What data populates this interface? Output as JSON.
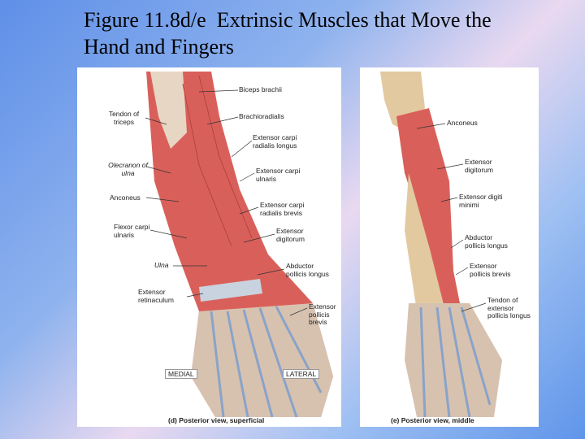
{
  "title": "Figure 11.8d/e  Extrinsic Muscles that Move the Hand and Fingers",
  "panels": [
    {
      "labels": [
        "Biceps brachii",
        "Brachioradialis",
        "Tendon of triceps",
        "Olecranon of ulna",
        "Extensor carpi radialis longus",
        "Extensor carpi ulnaris",
        "Anconeus",
        "Extensor carpi radialis brevis",
        "Flexor carpi ulnaris",
        "Extensor digitorum",
        "Ulna",
        "Abductor pollicis longus",
        "Extensor retinaculum",
        "Extensor pollicis brevis"
      ],
      "orientation": [
        "MEDIAL",
        "LATERAL"
      ],
      "caption": "(d) Posterior view, superficial"
    },
    {
      "labels": [
        "Anconeus",
        "Extensor digitorum",
        "Extensor digiti minimi",
        "Abductor pollicis longus",
        "Extensor pollicis brevis",
        "Tendon of extensor pollicis longus"
      ],
      "caption": "(e) Posterior view, middle"
    }
  ]
}
